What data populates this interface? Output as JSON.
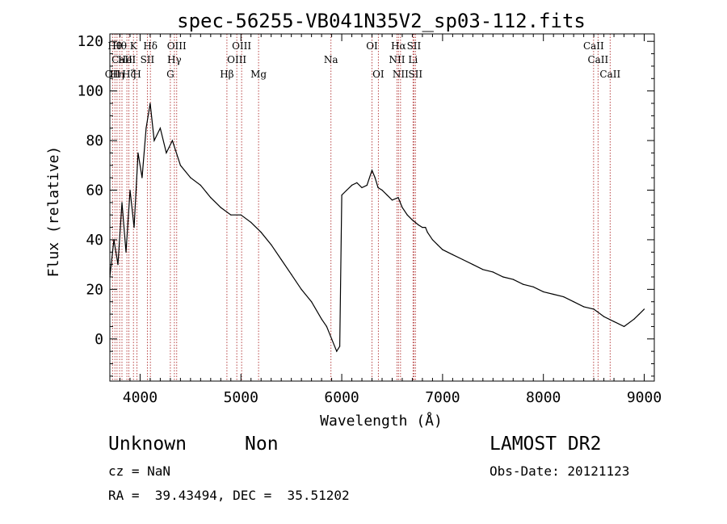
{
  "chart_data": {
    "type": "line",
    "title": "spec-56255-VB041N35V2_sp03-112.fits",
    "xlabel": "Wavelength (Å)",
    "ylabel": "Flux (relative)",
    "xlim": [
      3700,
      9100
    ],
    "ylim": [
      -17,
      123
    ],
    "xticks": [
      4000,
      5000,
      6000,
      7000,
      8000,
      9000
    ],
    "yticks": [
      0,
      20,
      40,
      60,
      80,
      100,
      120
    ],
    "grid": false,
    "series": [
      {
        "color": "#000000",
        "x": [
          3700,
          3740,
          3780,
          3820,
          3860,
          3900,
          3940,
          3980,
          4020,
          4060,
          4100,
          4140,
          4200,
          4260,
          4320,
          4400,
          4500,
          4600,
          4700,
          4800,
          4900,
          5000,
          5100,
          5200,
          5300,
          5400,
          5500,
          5600,
          5700,
          5800,
          5850,
          5900,
          5950,
          5980,
          6000,
          6050,
          6100,
          6150,
          6200,
          6250,
          6300,
          6330,
          6360,
          6400,
          6450,
          6500,
          6560,
          6600,
          6650,
          6700,
          6760,
          6800,
          6830,
          6850,
          6900,
          6950,
          7000,
          7100,
          7200,
          7300,
          7400,
          7500,
          7600,
          7700,
          7800,
          7900,
          8000,
          8100,
          8200,
          8300,
          8400,
          8500,
          8600,
          8700,
          8800,
          8900,
          8950,
          9000
        ],
        "values": [
          25,
          40,
          30,
          55,
          35,
          60,
          45,
          75,
          65,
          85,
          95,
          80,
          85,
          75,
          80,
          70,
          65,
          62,
          57,
          53,
          50,
          50,
          47,
          43,
          38,
          32,
          26,
          20,
          15,
          8,
          5,
          0,
          -5,
          -3,
          58,
          60,
          62,
          63,
          61,
          62,
          68,
          65,
          61,
          60,
          58,
          56,
          57,
          53,
          50,
          48,
          46,
          45,
          45,
          43,
          40,
          38,
          36,
          34,
          32,
          30,
          28,
          27,
          25,
          24,
          22,
          21,
          19,
          18,
          17,
          15,
          13,
          12,
          9,
          7,
          5,
          8,
          10,
          12
        ]
      }
    ],
    "lines": [
      {
        "x": 3727,
        "label": "OII",
        "row": 3
      },
      {
        "x": 3750,
        "label": "Hθ",
        "row": 1
      },
      {
        "x": 3771,
        "label": "Hη",
        "row": 3
      },
      {
        "x": 3797,
        "label": "Hθ",
        "row": 1
      },
      {
        "x": 3820,
        "label": "CaII",
        "row": 2
      },
      {
        "x": 3869,
        "label": "HeI",
        "row": 2
      },
      {
        "x": 3889,
        "label": "Hζ",
        "row": 3
      },
      {
        "x": 3934,
        "label": "K",
        "row": 1
      },
      {
        "x": 3969,
        "label": "H",
        "row": 3
      },
      {
        "x": 4072,
        "label": "SII",
        "row": 2
      },
      {
        "x": 4102,
        "label": "Hδ",
        "row": 1
      },
      {
        "x": 4300,
        "label": "G",
        "row": 3
      },
      {
        "x": 4340,
        "label": "Hγ",
        "row": 2
      },
      {
        "x": 4363,
        "label": "OIII",
        "row": 1
      },
      {
        "x": 4861,
        "label": "Hβ",
        "row": 3
      },
      {
        "x": 4959,
        "label": "OIII",
        "row": 2
      },
      {
        "x": 5007,
        "label": "OIII",
        "row": 1
      },
      {
        "x": 5175,
        "label": "Mg",
        "row": 3
      },
      {
        "x": 5893,
        "label": "Na",
        "row": 2
      },
      {
        "x": 6300,
        "label": "OI",
        "row": 1
      },
      {
        "x": 6363,
        "label": "OI",
        "row": 3
      },
      {
        "x": 6548,
        "label": "NII",
        "row": 2
      },
      {
        "x": 6563,
        "label": "Hα",
        "row": 1
      },
      {
        "x": 6583,
        "label": "NII",
        "row": 3
      },
      {
        "x": 6707,
        "label": "Li",
        "row": 2
      },
      {
        "x": 6716,
        "label": "SII",
        "row": 1
      },
      {
        "x": 6731,
        "label": "SII",
        "row": 3
      },
      {
        "x": 8498,
        "label": "CaII",
        "row": 1
      },
      {
        "x": 8542,
        "label": "CaII",
        "row": 2
      },
      {
        "x": 8662,
        "label": "CaII",
        "row": 3
      }
    ]
  },
  "info": {
    "object_class": "Unknown",
    "subclass": "Non",
    "survey": "LAMOST DR2",
    "cz": "cz = NaN",
    "obs_date": "Obs-Date: 20121123",
    "coords": "RA =  39.43494, DEC =  35.51202"
  }
}
